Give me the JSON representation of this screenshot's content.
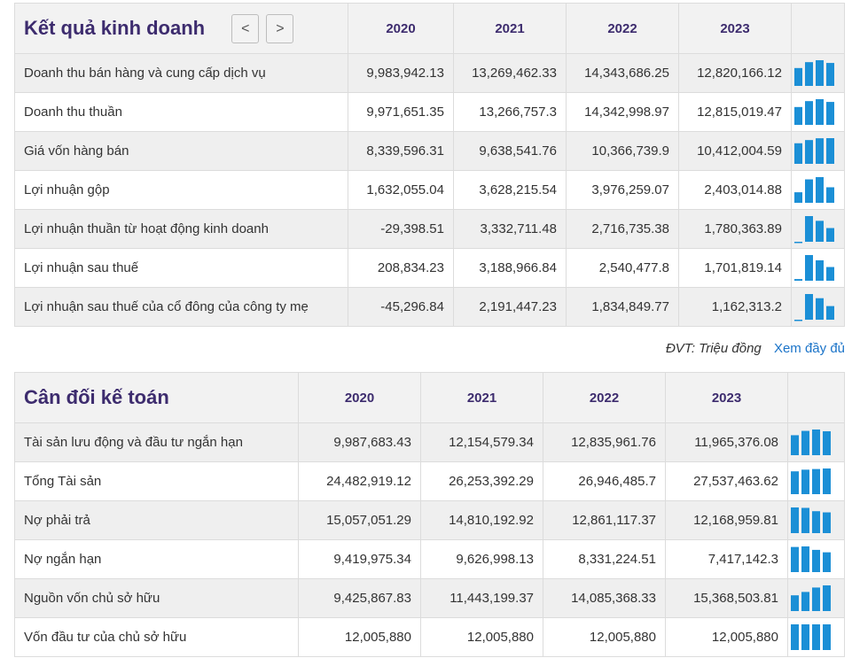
{
  "kqkd": {
    "title": "Kết quả kinh doanh",
    "prev": "<",
    "next": ">",
    "years": [
      "2020",
      "2021",
      "2022",
      "2023"
    ],
    "rows": [
      {
        "label": "Doanh thu bán hàng và cung cấp dịch vụ",
        "values": [
          "9,983,942.13",
          "13,269,462.33",
          "14,343,686.25",
          "12,820,166.12"
        ],
        "nums": [
          9983942.13,
          13269462.33,
          14343686.25,
          12820166.12
        ]
      },
      {
        "label": "Doanh thu thuần",
        "values": [
          "9,971,651.35",
          "13,266,757.3",
          "14,342,998.97",
          "12,815,019.47"
        ],
        "nums": [
          9971651.35,
          13266757.3,
          14342998.97,
          12815019.47
        ]
      },
      {
        "label": "Giá vốn hàng bán",
        "values": [
          "8,339,596.31",
          "9,638,541.76",
          "10,366,739.9",
          "10,412,004.59"
        ],
        "nums": [
          8339596.31,
          9638541.76,
          10366739.9,
          10412004.59
        ]
      },
      {
        "label": "Lợi nhuận gộp",
        "values": [
          "1,632,055.04",
          "3,628,215.54",
          "3,976,259.07",
          "2,403,014.88"
        ],
        "nums": [
          1632055.04,
          3628215.54,
          3976259.07,
          2403014.88
        ]
      },
      {
        "label": "Lợi nhuận thuần từ hoạt động kinh doanh",
        "values": [
          "-29,398.51",
          "3,332,711.48",
          "2,716,735.38",
          "1,780,363.89"
        ],
        "nums": [
          -29398.51,
          3332711.48,
          2716735.38,
          1780363.89
        ]
      },
      {
        "label": "Lợi nhuận sau thuế",
        "values": [
          "208,834.23",
          "3,188,966.84",
          "2,540,477.8",
          "1,701,819.14"
        ],
        "nums": [
          208834.23,
          3188966.84,
          2540477.8,
          1701819.14
        ]
      },
      {
        "label": "Lợi nhuận sau thuế của cổ đông của công ty mẹ",
        "values": [
          "-45,296.84",
          "2,191,447.23",
          "1,834,849.77",
          "1,162,313.2"
        ],
        "nums": [
          -45296.84,
          2191447.23,
          1834849.77,
          1162313.2
        ]
      }
    ]
  },
  "note": {
    "unit": "ĐVT: Triệu đồng",
    "more": "Xem đầy đủ"
  },
  "cdkt": {
    "title": "Cân đối kế toán",
    "years": [
      "2020",
      "2021",
      "2022",
      "2023"
    ],
    "rows": [
      {
        "label": "Tài sản lưu động và đầu tư ngắn hạn",
        "values": [
          "9,987,683.43",
          "12,154,579.34",
          "12,835,961.76",
          "11,965,376.08"
        ],
        "nums": [
          9987683.43,
          12154579.34,
          12835961.76,
          11965376.08
        ]
      },
      {
        "label": "Tổng Tài sản",
        "values": [
          "24,482,919.12",
          "26,253,392.29",
          "26,946,485.7",
          "27,537,463.62"
        ],
        "nums": [
          24482919.12,
          26253392.29,
          26946485.7,
          27537463.62
        ]
      },
      {
        "label": "Nợ phải trả",
        "values": [
          "15,057,051.29",
          "14,810,192.92",
          "12,861,117.37",
          "12,168,959.81"
        ],
        "nums": [
          15057051.29,
          14810192.92,
          12861117.37,
          12168959.81
        ]
      },
      {
        "label": "Nợ ngắn hạn",
        "values": [
          "9,419,975.34",
          "9,626,998.13",
          "8,331,224.51",
          "7,417,142.3"
        ],
        "nums": [
          9419975.34,
          9626998.13,
          8331224.51,
          7417142.3
        ]
      },
      {
        "label": "Nguồn vốn chủ sở hữu",
        "values": [
          "9,425,867.83",
          "11,443,199.37",
          "14,085,368.33",
          "15,368,503.81"
        ],
        "nums": [
          9425867.83,
          11443199.37,
          14085368.33,
          15368503.81
        ]
      },
      {
        "label": "Vốn đầu tư của chủ sở hữu",
        "values": [
          "12,005,880",
          "12,005,880",
          "12,005,880",
          "12,005,880"
        ],
        "nums": [
          12005880,
          12005880,
          12005880,
          12005880
        ]
      }
    ]
  },
  "colors": {
    "accent": "#3d2c6e",
    "bar": "#1b8fd6",
    "link": "#1a73c8",
    "row_shade": "#efefef",
    "header_bg": "#f2f2f2"
  }
}
